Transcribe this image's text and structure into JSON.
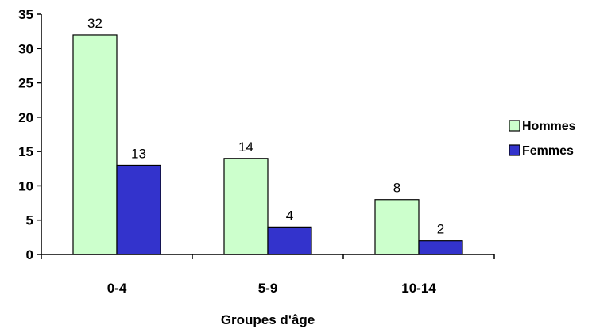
{
  "chart_data": {
    "type": "bar",
    "categories": [
      "0-4",
      "5-9",
      "10-14"
    ],
    "series": [
      {
        "name": "Hommes",
        "values": [
          32,
          14,
          8
        ],
        "color": "#ccffcc"
      },
      {
        "name": "Femmes",
        "values": [
          13,
          4,
          2
        ],
        "color": "#3333cc"
      }
    ],
    "xlabel": "Groupes d'âge",
    "ylabel": "",
    "ylim": [
      0,
      35
    ],
    "yticks": [
      "0",
      "5",
      "10",
      "15",
      "20",
      "25",
      "30",
      "35"
    ],
    "grid": false,
    "legend_position": "right",
    "data_labels": true
  }
}
